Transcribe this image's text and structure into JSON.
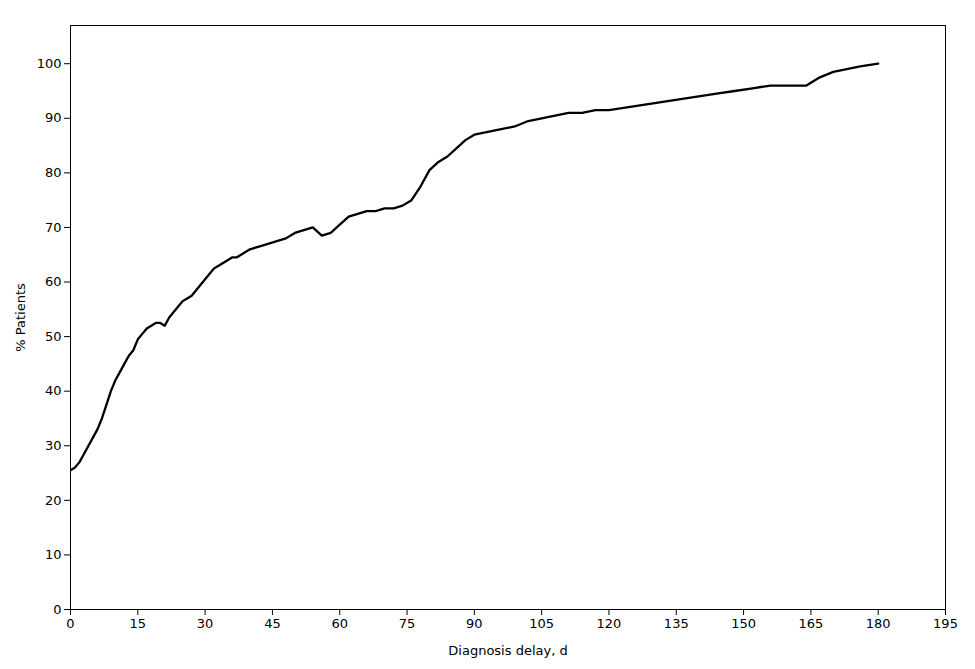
{
  "chart_data": {
    "type": "line",
    "x": [
      0,
      1,
      2,
      3,
      4,
      5,
      6,
      7,
      8,
      9,
      10,
      11,
      12,
      13,
      14,
      15,
      16,
      17,
      18,
      19,
      20,
      21,
      22,
      23,
      24,
      25,
      26,
      27,
      28,
      29,
      30,
      31,
      32,
      33,
      34,
      35,
      36,
      37,
      38,
      39,
      40,
      42,
      44,
      46,
      48,
      50,
      52,
      54,
      56,
      58,
      60,
      62,
      64,
      66,
      68,
      70,
      72,
      74,
      76,
      78,
      80,
      82,
      84,
      86,
      88,
      90,
      93,
      96,
      99,
      102,
      105,
      108,
      111,
      114,
      117,
      120,
      124,
      128,
      132,
      136,
      140,
      144,
      148,
      152,
      156,
      160,
      164,
      167,
      170,
      173,
      176,
      180
    ],
    "values": [
      25.5,
      26.0,
      27.0,
      28.5,
      30.0,
      31.5,
      33.0,
      35.0,
      37.5,
      40.0,
      42.0,
      43.5,
      45.0,
      46.5,
      47.5,
      49.5,
      50.5,
      51.5,
      52.0,
      52.5,
      52.5,
      52.0,
      53.5,
      54.5,
      55.5,
      56.5,
      57.0,
      57.5,
      58.5,
      59.5,
      60.5,
      61.5,
      62.5,
      63.0,
      63.5,
      64.0,
      64.5,
      64.5,
      65.0,
      65.5,
      66.0,
      66.5,
      67.0,
      67.5,
      68.0,
      69.0,
      69.5,
      70.0,
      68.5,
      69.0,
      70.5,
      72.0,
      72.5,
      73.0,
      73.0,
      73.5,
      73.5,
      74.0,
      75.0,
      77.5,
      80.5,
      82.0,
      83.0,
      84.5,
      86.0,
      87.0,
      87.5,
      88.0,
      88.5,
      89.5,
      90.0,
      90.5,
      91.0,
      91.0,
      91.5,
      91.5,
      92.0,
      92.5,
      93.0,
      93.5,
      94.0,
      94.5,
      95.0,
      95.5,
      96.0,
      96.0,
      96.0,
      97.5,
      98.5,
      99.0,
      99.5,
      100.0
    ],
    "color": "#000000",
    "xlabel": "Diagnosis delay, d",
    "ylabel": "% Patients",
    "xlim": [
      0,
      195
    ],
    "ylim": [
      0,
      107
    ],
    "xticks": [
      0,
      15,
      30,
      45,
      60,
      75,
      90,
      105,
      120,
      135,
      150,
      165,
      180,
      195
    ],
    "yticks": [
      0,
      10,
      20,
      30,
      40,
      50,
      60,
      70,
      80,
      90,
      100
    ],
    "grid": false
  }
}
